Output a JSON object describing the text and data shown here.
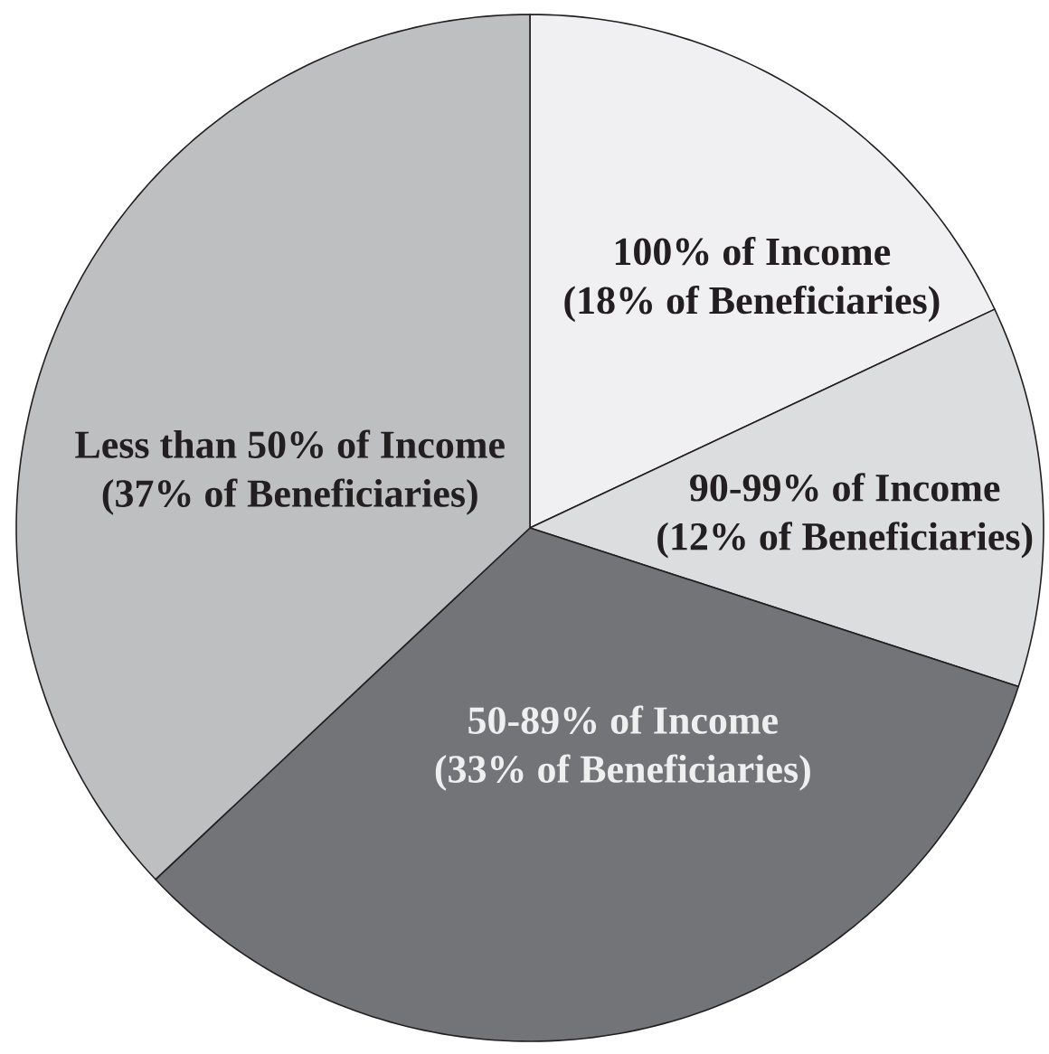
{
  "chart_data": {
    "type": "pie",
    "categories": [
      "100% of Income",
      "90-99% of Income",
      "50-89% of Income",
      "Less than 50% of Income"
    ],
    "values": [
      18,
      12,
      33,
      37
    ],
    "value_labels": [
      "(18% of Beneficiaries)",
      "(12% of Beneficiaries)",
      "(33% of Beneficiaries)",
      "(37% of Beneficiaries)"
    ],
    "colors": [
      "#f0f0f2",
      "#dcdddf",
      "#737478",
      "#bebfc1"
    ]
  }
}
